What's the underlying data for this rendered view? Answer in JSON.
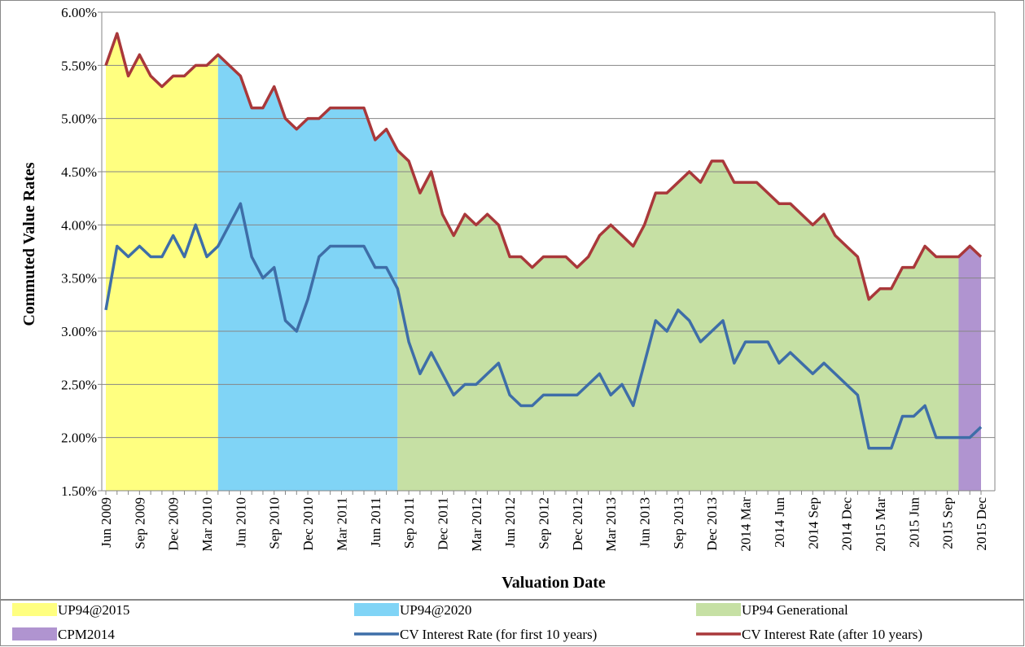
{
  "chart_data": {
    "type": "line",
    "y_label": "Commuted Value Rates",
    "x_label": "Valuation Date",
    "categories": [
      "Jun 2009",
      null,
      null,
      "Sep 2009",
      null,
      null,
      "Dec 2009",
      null,
      null,
      "Mar 2010",
      null,
      null,
      "Jun 2010",
      null,
      null,
      "Sep 2010",
      null,
      null,
      "Dec 2010",
      null,
      null,
      "Mar 2011",
      null,
      null,
      "Jun 2011",
      null,
      null,
      "Sep 2011",
      null,
      null,
      "Dec 2011",
      null,
      null,
      "Mar 2012",
      null,
      null,
      "Jun 2012",
      null,
      null,
      "Sep 2012",
      null,
      null,
      "Dec 2012",
      null,
      null,
      "Mar 2013",
      null,
      null,
      "Jun 2013",
      null,
      null,
      "Sep 2013",
      null,
      null,
      "Dec 2013",
      null,
      null,
      "2014 Mar",
      null,
      null,
      "2014 Jun",
      null,
      null,
      "2014 Sep",
      null,
      null,
      "2014 Dec",
      null,
      null,
      "2015 Mar",
      null,
      null,
      "2015 Jun",
      null,
      null,
      "2015 Sep",
      null,
      null,
      "2015 Dec"
    ],
    "ylim": [
      1.5,
      6
    ],
    "yticks": [
      {
        "value": 1.5,
        "label": "1.50%"
      },
      {
        "value": 2,
        "label": "2.00%"
      },
      {
        "value": 2.5,
        "label": "2.50%"
      },
      {
        "value": 3,
        "label": "3.00%"
      },
      {
        "value": 3.5,
        "label": "3.50%"
      },
      {
        "value": 4,
        "label": "4.00%"
      },
      {
        "value": 4.5,
        "label": "4.50%"
      },
      {
        "value": 5,
        "label": "5.00%"
      },
      {
        "value": 5.5,
        "label": "5.50%"
      },
      {
        "value": 6,
        "label": "6.00%"
      }
    ],
    "grid": true,
    "legend": "bottom",
    "series": [
      {
        "name": "UP94@2015",
        "kind": "area",
        "color": "#ffff80",
        "values": [
          5.5,
          5.8,
          5.4,
          5.6,
          5.4,
          5.3,
          5.4,
          5.4,
          5.5,
          5.5,
          5.6,
          null,
          null,
          null,
          null,
          null,
          null,
          null,
          null,
          null,
          null,
          null,
          null,
          null,
          null,
          null,
          null,
          null,
          null,
          null,
          null,
          null,
          null,
          null,
          null,
          null,
          null,
          null,
          null,
          null,
          null,
          null,
          null,
          null,
          null,
          null,
          null,
          null,
          null,
          null,
          null,
          null,
          null,
          null,
          null,
          null,
          null,
          null,
          null,
          null,
          null,
          null,
          null,
          null,
          null,
          null,
          null,
          null,
          null,
          null,
          null,
          null,
          null,
          null,
          null,
          null,
          null,
          null,
          null
        ]
      },
      {
        "name": "UP94@2020",
        "kind": "area",
        "color": "#80d4f6",
        "values": [
          null,
          null,
          null,
          null,
          null,
          null,
          null,
          null,
          null,
          null,
          5.6,
          5.5,
          5.4,
          5.1,
          5.1,
          5.3,
          5.0,
          4.9,
          5.0,
          5.0,
          5.1,
          5.1,
          5.1,
          5.1,
          4.8,
          4.9,
          4.7,
          null,
          null,
          null,
          null,
          null,
          null,
          null,
          null,
          null,
          null,
          null,
          null,
          null,
          null,
          null,
          null,
          null,
          null,
          null,
          null,
          null,
          null,
          null,
          null,
          null,
          null,
          null,
          null,
          null,
          null,
          null,
          null,
          null,
          null,
          null,
          null,
          null,
          null,
          null,
          null,
          null,
          null,
          null,
          null,
          null,
          null,
          null,
          null,
          null,
          null,
          null,
          null
        ]
      },
      {
        "name": "UP94 Generational",
        "kind": "area",
        "color": "#c6e0a4",
        "values": [
          null,
          null,
          null,
          null,
          null,
          null,
          null,
          null,
          null,
          null,
          null,
          null,
          null,
          null,
          null,
          null,
          null,
          null,
          null,
          null,
          null,
          null,
          null,
          null,
          null,
          null,
          4.7,
          4.6,
          4.3,
          4.5,
          4.1,
          3.9,
          4.1,
          4.0,
          4.1,
          4.0,
          3.7,
          3.7,
          3.6,
          3.7,
          3.7,
          3.7,
          3.6,
          3.7,
          3.9,
          4.0,
          3.9,
          3.8,
          4.0,
          4.3,
          4.3,
          4.4,
          4.5,
          4.4,
          4.6,
          4.6,
          4.4,
          4.4,
          4.4,
          4.3,
          4.2,
          4.2,
          4.1,
          4.0,
          4.1,
          3.9,
          3.8,
          3.7,
          3.3,
          3.4,
          3.4,
          3.6,
          3.6,
          3.8,
          3.7,
          3.7,
          3.7,
          null,
          null
        ]
      },
      {
        "name": "CPM2014",
        "kind": "area",
        "color": "#b094d0",
        "values": [
          null,
          null,
          null,
          null,
          null,
          null,
          null,
          null,
          null,
          null,
          null,
          null,
          null,
          null,
          null,
          null,
          null,
          null,
          null,
          null,
          null,
          null,
          null,
          null,
          null,
          null,
          null,
          null,
          null,
          null,
          null,
          null,
          null,
          null,
          null,
          null,
          null,
          null,
          null,
          null,
          null,
          null,
          null,
          null,
          null,
          null,
          null,
          null,
          null,
          null,
          null,
          null,
          null,
          null,
          null,
          null,
          null,
          null,
          null,
          null,
          null,
          null,
          null,
          null,
          null,
          null,
          null,
          null,
          null,
          null,
          null,
          null,
          null,
          null,
          null,
          null,
          3.7,
          3.8,
          3.7
        ]
      },
      {
        "name": "CV Interest Rate (for first 10 years)",
        "kind": "line",
        "color": "#3e6ea8",
        "values": [
          3.2,
          3.8,
          3.7,
          3.8,
          3.7,
          3.7,
          3.9,
          3.7,
          4.0,
          3.7,
          3.8,
          4.0,
          4.2,
          3.7,
          3.5,
          3.6,
          3.1,
          3.0,
          3.3,
          3.7,
          3.8,
          3.8,
          3.8,
          3.8,
          3.6,
          3.6,
          3.4,
          2.9,
          2.6,
          2.8,
          2.6,
          2.4,
          2.5,
          2.5,
          2.6,
          2.7,
          2.4,
          2.3,
          2.3,
          2.4,
          2.4,
          2.4,
          2.4,
          2.5,
          2.6,
          2.4,
          2.5,
          2.3,
          2.7,
          3.1,
          3.0,
          3.2,
          3.1,
          2.9,
          3.0,
          3.1,
          2.7,
          2.9,
          2.9,
          2.9,
          2.7,
          2.8,
          2.7,
          2.6,
          2.7,
          2.6,
          2.5,
          2.4,
          1.9,
          1.9,
          1.9,
          2.2,
          2.2,
          2.3,
          2.0,
          2.0,
          2.0,
          2.0,
          2.1
        ]
      },
      {
        "name": "CV Interest Rate (after 10 years)",
        "kind": "line",
        "color": "#a9383a",
        "values": [
          5.5,
          5.8,
          5.4,
          5.6,
          5.4,
          5.3,
          5.4,
          5.4,
          5.5,
          5.5,
          5.6,
          5.5,
          5.4,
          5.1,
          5.1,
          5.3,
          5.0,
          4.9,
          5.0,
          5.0,
          5.1,
          5.1,
          5.1,
          5.1,
          4.8,
          4.9,
          4.7,
          4.6,
          4.3,
          4.5,
          4.1,
          3.9,
          4.1,
          4.0,
          4.1,
          4.0,
          3.7,
          3.7,
          3.6,
          3.7,
          3.7,
          3.7,
          3.6,
          3.7,
          3.9,
          4.0,
          3.9,
          3.8,
          4.0,
          4.3,
          4.3,
          4.4,
          4.5,
          4.4,
          4.6,
          4.6,
          4.4,
          4.4,
          4.4,
          4.3,
          4.2,
          4.2,
          4.1,
          4.0,
          4.1,
          3.9,
          3.8,
          3.7,
          3.3,
          3.4,
          3.4,
          3.6,
          3.6,
          3.8,
          3.7,
          3.7,
          3.7,
          3.8,
          3.7
        ]
      }
    ]
  }
}
